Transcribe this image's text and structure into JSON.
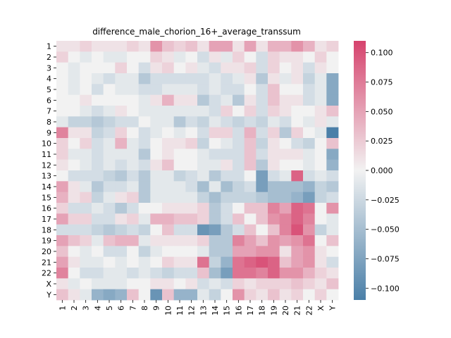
{
  "chart_data": {
    "type": "heatmap",
    "title": "difference_male_chorion_16+_average_transsum",
    "xlabel": "",
    "ylabel": "",
    "x_categories": [
      "1",
      "2",
      "3",
      "4",
      "5",
      "6",
      "7",
      "8",
      "9",
      "10",
      "11",
      "12",
      "13",
      "14",
      "15",
      "16",
      "17",
      "18",
      "19",
      "20",
      "21",
      "22",
      "X",
      "Y"
    ],
    "y_categories": [
      "1",
      "2",
      "3",
      "4",
      "5",
      "6",
      "7",
      "8",
      "9",
      "10",
      "11",
      "12",
      "13",
      "14",
      "15",
      "16",
      "17",
      "18",
      "19",
      "20",
      "21",
      "22",
      "X",
      "Y"
    ],
    "colorbar": {
      "min": -0.11,
      "max": 0.11,
      "ticks": [
        -0.1,
        -0.075,
        -0.05,
        -0.025,
        0.0,
        0.025,
        0.05,
        0.075,
        0.1
      ],
      "tick_labels": [
        "−0.100",
        "−0.075",
        "−0.050",
        "−0.025",
        "0.000",
        "0.025",
        "0.050",
        "0.075",
        "0.100"
      ],
      "colors": {
        "negative": "#4a7fa8",
        "center": "#f2f2f2",
        "positive": "#d6436d"
      }
    },
    "values": [
      [
        0.01,
        0.01,
        0.02,
        0.01,
        0.01,
        0.01,
        0.02,
        0.01,
        0.06,
        0.03,
        0.02,
        0.03,
        0.01,
        0.05,
        0.05,
        0.01,
        0.05,
        0.01,
        0.04,
        0.04,
        0.06,
        0.04,
        0.01,
        0.02
      ],
      [
        0.02,
        0.0,
        -0.01,
        0.0,
        -0.01,
        -0.01,
        0.0,
        0.0,
        0.02,
        0.01,
        -0.01,
        0.0,
        -0.02,
        0.01,
        -0.01,
        0.02,
        0.0,
        -0.02,
        0.02,
        0.01,
        0.01,
        0.0,
        0.02,
        0.0
      ],
      [
        0.0,
        -0.01,
        0.0,
        0.0,
        0.0,
        0.02,
        0.0,
        -0.02,
        0.01,
        0.02,
        0.0,
        0.01,
        -0.01,
        -0.02,
        0.01,
        0.01,
        0.02,
        -0.02,
        0.02,
        0.0,
        0.01,
        -0.02,
        0.01,
        0.0
      ],
      [
        0.0,
        -0.01,
        0.0,
        -0.01,
        -0.02,
        -0.01,
        -0.01,
        -0.04,
        -0.02,
        -0.02,
        -0.02,
        -0.02,
        -0.02,
        -0.01,
        -0.02,
        -0.01,
        0.01,
        -0.04,
        0.01,
        -0.01,
        0.01,
        -0.03,
        -0.01,
        -0.07
      ],
      [
        0.0,
        -0.01,
        0.0,
        -0.02,
        0.0,
        -0.01,
        -0.01,
        -0.02,
        -0.02,
        -0.01,
        -0.01,
        -0.01,
        -0.02,
        -0.01,
        -0.02,
        -0.02,
        0.0,
        -0.02,
        0.03,
        0.0,
        0.0,
        -0.02,
        -0.01,
        -0.07
      ],
      [
        0.0,
        0.0,
        0.01,
        0.0,
        0.0,
        0.0,
        0.0,
        -0.01,
        0.01,
        0.04,
        0.01,
        0.01,
        -0.04,
        -0.02,
        -0.01,
        -0.04,
        0.01,
        -0.02,
        0.03,
        0.01,
        0.01,
        -0.02,
        -0.01,
        -0.07
      ],
      [
        0.0,
        0.0,
        -0.01,
        -0.02,
        -0.01,
        0.01,
        0.0,
        -0.01,
        -0.01,
        -0.01,
        -0.01,
        -0.01,
        -0.01,
        -0.02,
        0.02,
        0.0,
        0.02,
        -0.02,
        0.02,
        0.01,
        0.0,
        0.0,
        0.01,
        0.03
      ],
      [
        -0.01,
        -0.03,
        -0.03,
        -0.04,
        -0.03,
        -0.02,
        -0.02,
        0.0,
        -0.01,
        -0.01,
        -0.04,
        -0.02,
        -0.03,
        -0.01,
        -0.02,
        -0.03,
        -0.02,
        -0.03,
        -0.01,
        -0.02,
        0.0,
        -0.01,
        0.01,
        -0.01
      ],
      [
        0.07,
        0.01,
        0.01,
        -0.03,
        -0.02,
        0.02,
        0.0,
        -0.02,
        -0.01,
        0.0,
        -0.01,
        0.0,
        -0.02,
        0.02,
        0.02,
        -0.02,
        0.04,
        -0.02,
        0.02,
        -0.04,
        0.02,
        0.0,
        -0.01,
        -0.11
      ],
      [
        0.02,
        0.0,
        0.02,
        -0.02,
        -0.01,
        0.04,
        -0.01,
        -0.02,
        0.0,
        0.01,
        0.01,
        0.02,
        -0.03,
        0.0,
        -0.01,
        -0.02,
        0.03,
        -0.03,
        0.01,
        0.0,
        -0.02,
        -0.03,
        0.0,
        0.03
      ],
      [
        0.02,
        -0.01,
        -0.01,
        -0.02,
        -0.01,
        -0.01,
        -0.01,
        -0.04,
        0.0,
        0.01,
        0.0,
        0.0,
        -0.01,
        -0.02,
        -0.02,
        -0.02,
        0.03,
        -0.02,
        0.01,
        0.01,
        0.01,
        -0.01,
        0.0,
        -0.07
      ],
      [
        0.01,
        0.0,
        -0.01,
        -0.02,
        -0.01,
        -0.02,
        -0.01,
        -0.02,
        0.01,
        0.03,
        0.0,
        0.0,
        -0.01,
        -0.01,
        0.01,
        -0.02,
        0.03,
        -0.04,
        0.01,
        0.0,
        0.0,
        -0.01,
        0.0,
        -0.06
      ],
      [
        0.0,
        -0.02,
        -0.02,
        -0.02,
        -0.03,
        -0.04,
        -0.02,
        -0.04,
        -0.01,
        -0.01,
        -0.03,
        -0.02,
        -0.01,
        -0.04,
        -0.02,
        -0.02,
        0.0,
        -0.08,
        -0.02,
        -0.01,
        0.09,
        -0.02,
        -0.01,
        -0.02
      ],
      [
        0.05,
        0.01,
        -0.01,
        -0.04,
        -0.02,
        -0.02,
        -0.01,
        -0.04,
        -0.01,
        -0.01,
        -0.01,
        -0.02,
        -0.05,
        -0.01,
        -0.05,
        -0.03,
        -0.02,
        -0.08,
        -0.05,
        -0.05,
        -0.05,
        -0.06,
        -0.03,
        -0.04
      ],
      [
        0.04,
        0.01,
        0.02,
        -0.03,
        -0.01,
        0.01,
        0.02,
        -0.04,
        -0.01,
        -0.01,
        -0.01,
        -0.01,
        -0.03,
        -0.05,
        -0.03,
        -0.03,
        -0.03,
        -0.04,
        -0.05,
        -0.05,
        -0.06,
        -0.08,
        -0.03,
        -0.02
      ],
      [
        0.02,
        -0.02,
        -0.02,
        -0.01,
        -0.02,
        -0.04,
        -0.02,
        0.0,
        0.0,
        0.01,
        0.01,
        0.01,
        0.02,
        -0.04,
        -0.02,
        0.0,
        0.03,
        0.03,
        0.07,
        0.05,
        0.09,
        0.08,
        0.0,
        0.06
      ],
      [
        0.05,
        0.02,
        0.02,
        -0.02,
        -0.02,
        0.01,
        0.02,
        -0.01,
        0.04,
        0.04,
        0.03,
        0.03,
        0.02,
        -0.04,
        -0.02,
        0.03,
        0.0,
        0.03,
        0.06,
        0.07,
        0.09,
        0.07,
        0.0,
        -0.01
      ],
      [
        -0.02,
        -0.02,
        -0.02,
        -0.03,
        -0.04,
        -0.03,
        -0.02,
        -0.03,
        0.0,
        0.03,
        -0.02,
        -0.02,
        -0.09,
        -0.08,
        -0.04,
        -0.02,
        0.03,
        0.0,
        0.03,
        0.07,
        0.1,
        0.06,
        -0.03,
        -0.01
      ],
      [
        0.05,
        0.03,
        0.02,
        -0.01,
        0.03,
        0.04,
        0.04,
        -0.01,
        0.01,
        0.01,
        0.01,
        0.01,
        0.02,
        -0.04,
        -0.04,
        0.07,
        0.05,
        0.03,
        0.06,
        0.05,
        0.06,
        0.08,
        0.0,
        0.03
      ],
      [
        0.03,
        0.0,
        -0.01,
        0.0,
        -0.02,
        -0.02,
        0.0,
        -0.03,
        -0.01,
        0.0,
        0.0,
        0.0,
        -0.01,
        -0.04,
        -0.04,
        0.05,
        0.05,
        0.06,
        0.06,
        0.01,
        0.05,
        0.06,
        0.01,
        0.0
      ],
      [
        0.05,
        0.01,
        -0.01,
        -0.01,
        0.0,
        -0.01,
        0.0,
        -0.01,
        0.0,
        0.02,
        0.01,
        0.01,
        0.08,
        -0.03,
        -0.06,
        0.08,
        0.09,
        0.1,
        0.09,
        0.03,
        0.05,
        0.06,
        0.01,
        -0.02
      ],
      [
        0.07,
        0.0,
        -0.02,
        -0.02,
        -0.01,
        -0.01,
        -0.02,
        -0.01,
        -0.02,
        -0.03,
        -0.02,
        -0.02,
        0.03,
        -0.05,
        -0.08,
        0.08,
        0.08,
        0.07,
        0.09,
        0.06,
        0.06,
        0.04,
        0.02,
        0.01
      ],
      [
        0.01,
        -0.01,
        0.0,
        -0.01,
        -0.01,
        -0.01,
        0.0,
        0.0,
        0.01,
        0.01,
        0.0,
        0.01,
        -0.02,
        -0.01,
        -0.02,
        0.02,
        0.01,
        0.02,
        0.02,
        0.02,
        0.03,
        0.02,
        0.01,
        0.03
      ],
      [
        0.03,
        0.01,
        -0.01,
        -0.06,
        -0.07,
        -0.06,
        0.03,
        0.0,
        -0.09,
        0.03,
        -0.06,
        -0.06,
        -0.01,
        -0.03,
        0.0,
        0.06,
        0.02,
        0.01,
        0.03,
        0.01,
        0.02,
        0.0,
        0.02,
        0.0
      ]
    ]
  }
}
